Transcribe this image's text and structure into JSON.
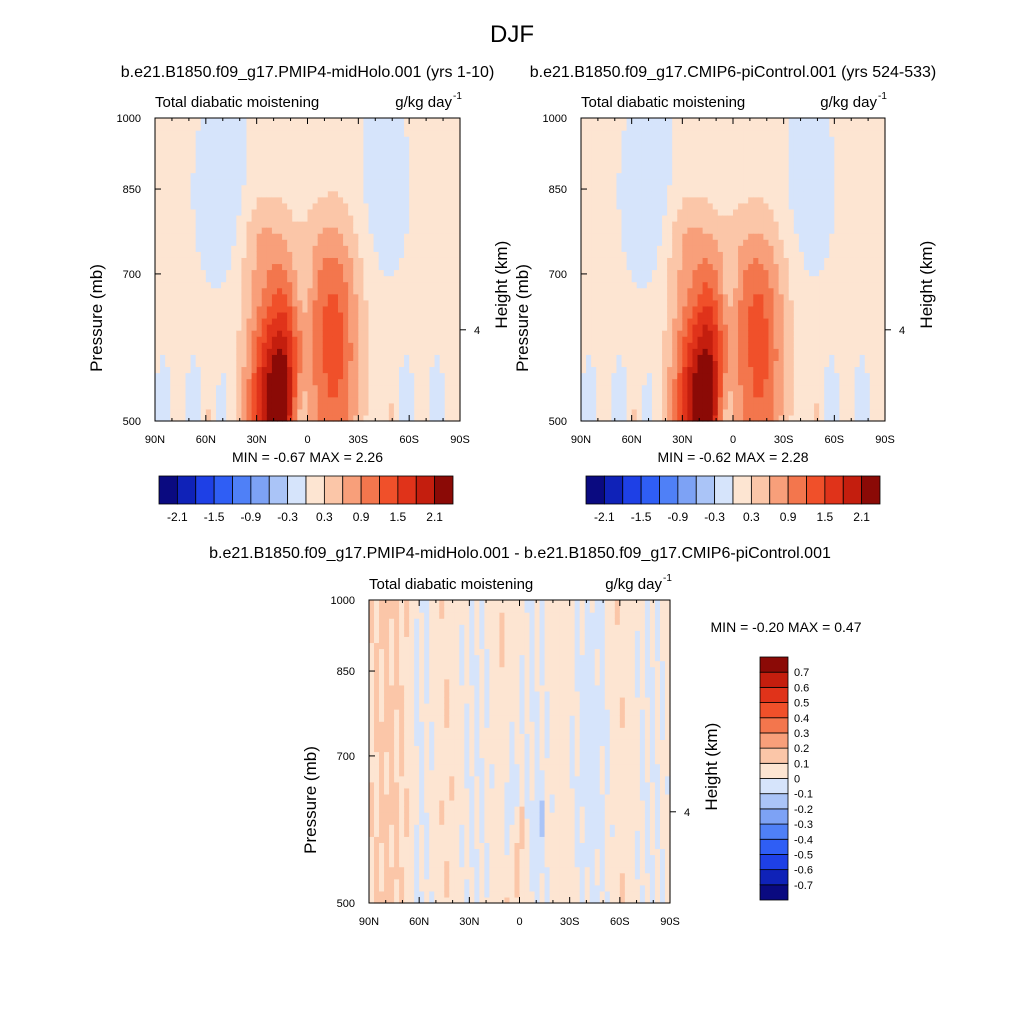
{
  "page_title": "DJF",
  "chart_data": [
    {
      "type": "contour",
      "id": "midholo",
      "title": "b.e21.B1850.f09_g17.PMIP4-midHolo.001 (yrs 1-10)",
      "left_label": "Total diabatic moistening",
      "right_label_base": "g/kg day",
      "right_label_exp": "-1",
      "ylabel": "Pressure (mb)",
      "ylabel_right": "Height (km)",
      "xlim": [
        90,
        -90
      ],
      "x_ticks": [
        90,
        60,
        30,
        0,
        -30,
        -60,
        -90
      ],
      "x_tick_labels": [
        "90N",
        "60N",
        "30N",
        "0",
        "30S",
        "60S",
        "90S"
      ],
      "ylim_pressure": [
        1000,
        500
      ],
      "y_ticks": [
        500,
        700,
        850,
        1000
      ],
      "y_tick_labels": [
        "500",
        "700",
        "850",
        "1000"
      ],
      "height_ticks": [
        {
          "pressure": 616,
          "label": "4"
        }
      ],
      "min_label": "MIN =  -0.67  MAX =   2.26",
      "min": -0.67,
      "max": 2.26,
      "colorbar_labels": [
        "-2.1",
        "-1.5",
        "-0.9",
        "-0.3",
        "0.3",
        "0.9",
        "1.5",
        "2.1"
      ],
      "colorbar_levels": [
        -2.4,
        -2.1,
        -1.8,
        -1.5,
        -1.2,
        -0.9,
        -0.6,
        -0.3,
        0,
        0.3,
        0.6,
        0.9,
        1.2,
        1.5,
        1.8,
        2.1,
        2.4
      ]
    },
    {
      "type": "contour",
      "id": "picontrol",
      "title": "b.e21.B1850.f09_g17.CMIP6-piControl.001 (yrs 524-533)",
      "left_label": "Total diabatic moistening",
      "right_label_base": "g/kg day",
      "right_label_exp": "-1",
      "ylabel": "Pressure (mb)",
      "ylabel_right": "Height (km)",
      "xlim": [
        90,
        -90
      ],
      "x_ticks": [
        90,
        60,
        30,
        0,
        -30,
        -60,
        -90
      ],
      "x_tick_labels": [
        "90N",
        "60N",
        "30N",
        "0",
        "30S",
        "60S",
        "90S"
      ],
      "ylim_pressure": [
        1000,
        500
      ],
      "y_ticks": [
        500,
        700,
        850,
        1000
      ],
      "y_tick_labels": [
        "500",
        "700",
        "850",
        "1000"
      ],
      "height_ticks": [
        {
          "pressure": 616,
          "label": "4"
        }
      ],
      "min_label": "MIN =  -0.62  MAX =   2.28",
      "min": -0.62,
      "max": 2.28,
      "colorbar_labels": [
        "-2.1",
        "-1.5",
        "-0.9",
        "-0.3",
        "0.3",
        "0.9",
        "1.5",
        "2.1"
      ],
      "colorbar_levels": [
        -2.4,
        -2.1,
        -1.8,
        -1.5,
        -1.2,
        -0.9,
        -0.6,
        -0.3,
        0,
        0.3,
        0.6,
        0.9,
        1.2,
        1.5,
        1.8,
        2.1,
        2.4
      ]
    },
    {
      "type": "contour",
      "id": "difference",
      "title": "b.e21.B1850.f09_g17.PMIP4-midHolo.001 - b.e21.B1850.f09_g17.CMIP6-piControl.001",
      "left_label": "Total diabatic moistening",
      "right_label_base": "g/kg day",
      "right_label_exp": "-1",
      "ylabel": "Pressure (mb)",
      "ylabel_right": "Height (km)",
      "xlim": [
        90,
        -90
      ],
      "x_ticks": [
        90,
        60,
        30,
        0,
        -30,
        -60,
        -90
      ],
      "x_tick_labels": [
        "90N",
        "60N",
        "30N",
        "0",
        "30S",
        "60S",
        "90S"
      ],
      "ylim_pressure": [
        1000,
        500
      ],
      "y_ticks": [
        500,
        700,
        850,
        1000
      ],
      "y_tick_labels": [
        "500",
        "700",
        "850",
        "1000"
      ],
      "height_ticks": [
        {
          "pressure": 616,
          "label": "4"
        }
      ],
      "min_label": "MIN =  -0.20  MAX =   0.47",
      "min": -0.2,
      "max": 0.47,
      "colorbar_labels": [
        "0.7",
        "0.6",
        "0.5",
        "0.4",
        "0.3",
        "0.2",
        "0.1",
        "0",
        "-0.1",
        "-0.2",
        "-0.3",
        "-0.4",
        "-0.5",
        "-0.6",
        "-0.7"
      ],
      "colorbar_levels": [
        -0.8,
        -0.7,
        -0.6,
        -0.5,
        -0.4,
        -0.3,
        -0.2,
        -0.1,
        0,
        0.1,
        0.2,
        0.3,
        0.4,
        0.5,
        0.6,
        0.7,
        0.8
      ]
    }
  ],
  "colors": {
    "palette": [
      "#0a0a80",
      "#0f22b8",
      "#1e40e6",
      "#2f5ef5",
      "#4f80f7",
      "#7da2f5",
      "#aac4f7",
      "#d6e4fb",
      "#fde5d2",
      "#fbc6a8",
      "#f89f7a",
      "#f3764d",
      "#f0502a",
      "#e0331a",
      "#c41e0e",
      "#8b0a06"
    ]
  }
}
